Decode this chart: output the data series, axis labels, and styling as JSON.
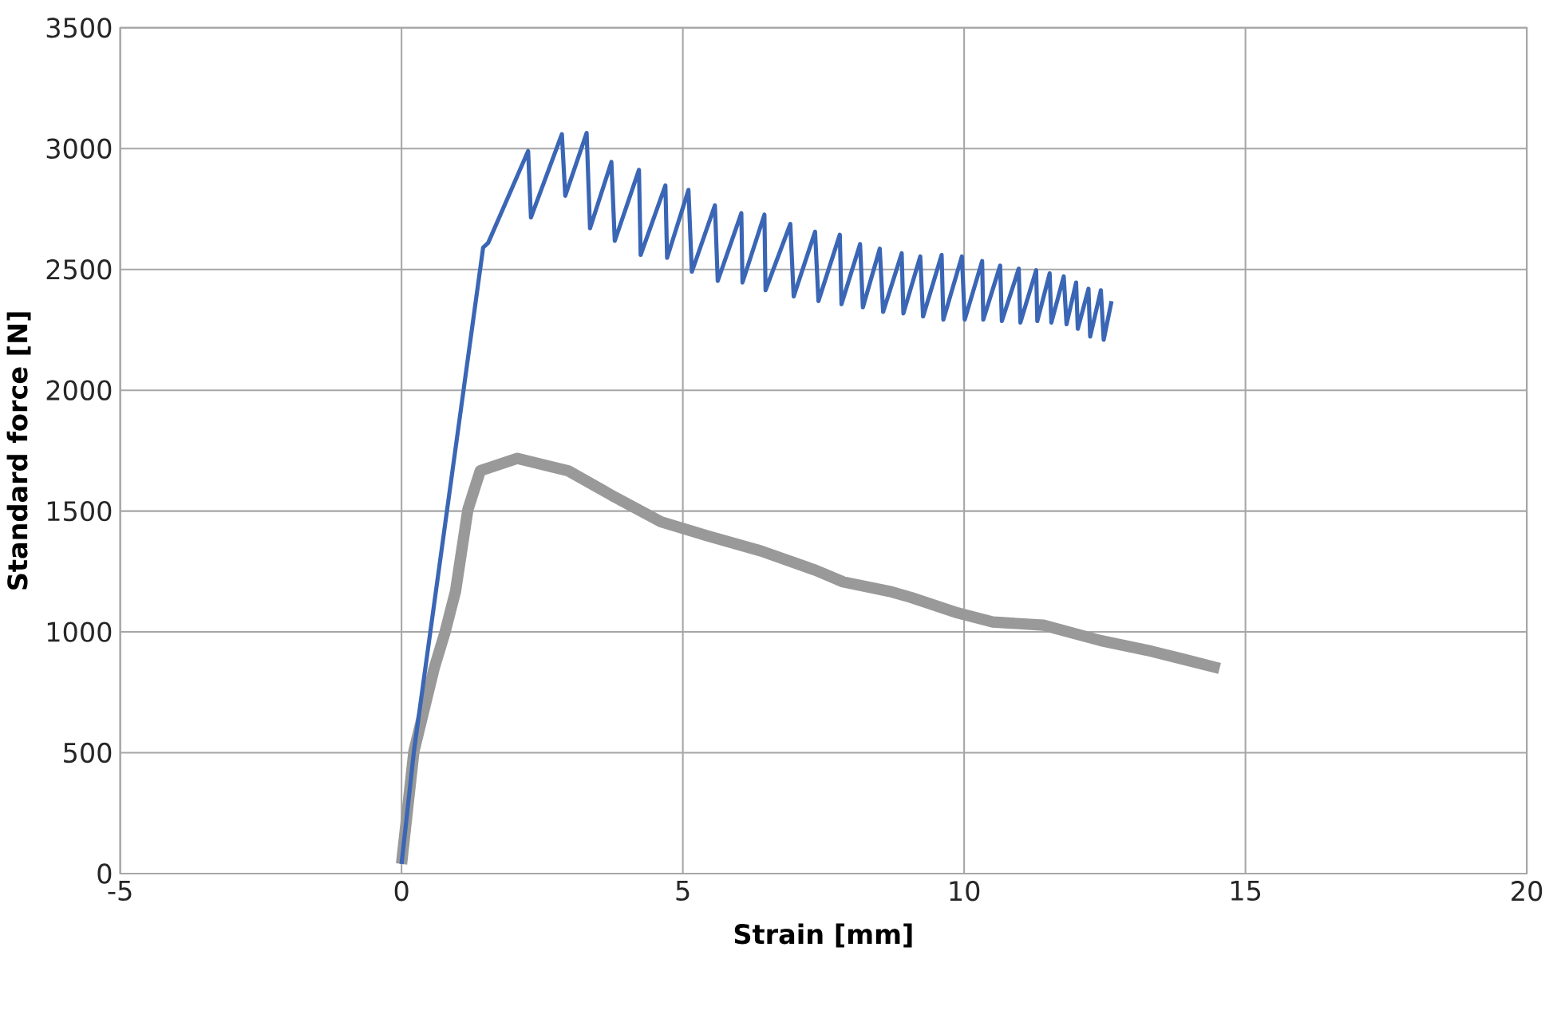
{
  "chart_data": {
    "type": "line",
    "xlabel": "Strain [mm]",
    "ylabel": "Standard force [N]",
    "xlim": [
      -5,
      20
    ],
    "ylim": [
      0,
      3500
    ],
    "xticks": [
      -5,
      0,
      5,
      10,
      15,
      20
    ],
    "yticks": [
      0,
      500,
      1000,
      1500,
      2000,
      2500,
      3000,
      3500
    ],
    "grid": true,
    "marker": "none",
    "line_style": "solid",
    "series": [
      {
        "color": "#3a66b5",
        "x": [
          0,
          0.22,
          1.45,
          1.54,
          2.25,
          2.3,
          2.85,
          2.91,
          3.29,
          3.35,
          3.73,
          3.79,
          4.22,
          4.25,
          4.69,
          4.72,
          5.1,
          5.16,
          5.57,
          5.62,
          6.04,
          6.06,
          6.45,
          6.47,
          6.91,
          6.97,
          7.35,
          7.41,
          7.79,
          7.82,
          8.15,
          8.2,
          8.5,
          8.56,
          8.89,
          8.92,
          9.22,
          9.27,
          9.6,
          9.63,
          9.96,
          10.01,
          10.32,
          10.34,
          10.64,
          10.67,
          10.97,
          11.0,
          11.28,
          11.3,
          11.52,
          11.55,
          11.77,
          11.82,
          11.99,
          12.02,
          12.21,
          12.24,
          12.43,
          12.48,
          12.62
        ],
        "values": [
          40,
          506,
          2590,
          2610,
          2990,
          2715,
          3060,
          2805,
          3065,
          2670,
          2945,
          2618,
          2912,
          2560,
          2848,
          2548,
          2829,
          2490,
          2765,
          2452,
          2733,
          2446,
          2727,
          2414,
          2688,
          2388,
          2656,
          2369,
          2644,
          2356,
          2605,
          2343,
          2586,
          2324,
          2567,
          2318,
          2554,
          2305,
          2560,
          2292,
          2554,
          2292,
          2535,
          2292,
          2516,
          2286,
          2503,
          2280,
          2497,
          2286,
          2484,
          2280,
          2471,
          2273,
          2446,
          2254,
          2420,
          2222,
          2414,
          2209,
          2369
        ]
      },
      {
        "color": "#999999",
        "x": [
          0,
          0.22,
          0.58,
          0.77,
          0.96,
          1.18,
          1.4,
          2.06,
          2.96,
          3.79,
          4.61,
          5.43,
          6.39,
          7.35,
          7.85,
          8.67,
          9.05,
          9.88,
          10.51,
          11.41,
          12.43,
          13.33,
          13.88,
          14.54
        ],
        "values": [
          40,
          506,
          850,
          996,
          1169,
          1507,
          1667,
          1718,
          1667,
          1558,
          1456,
          1398,
          1335,
          1256,
          1207,
          1168,
          1143,
          1079,
          1041,
          1028,
          964,
          920,
          888,
          849
        ]
      }
    ]
  }
}
